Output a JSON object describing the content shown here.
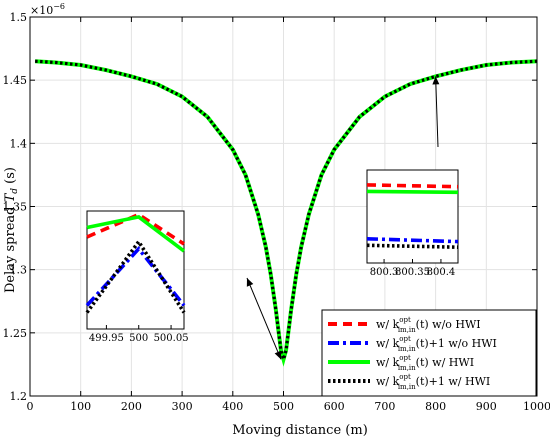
{
  "chart_data": {
    "type": "line",
    "xlabel": "Moving distance (m)",
    "ylabel": "Delay spread T_d (s)",
    "y_multiplier_label": "×10^-6",
    "xlim": [
      0,
      1000
    ],
    "ylim": [
      1.2,
      1.5
    ],
    "xticks": [
      "0",
      "100",
      "200",
      "300",
      "400",
      "500",
      "600",
      "700",
      "800",
      "900",
      "1000"
    ],
    "yticks": [
      "1.2",
      "1.25",
      "1.3",
      "1.35",
      "1.4",
      "1.45",
      "1.5"
    ],
    "grid": true,
    "legend_position": "bottom-right",
    "curve": {
      "x": [
        10,
        50,
        100,
        150,
        200,
        250,
        300,
        350,
        400,
        425,
        450,
        465,
        475,
        485,
        490,
        495,
        500,
        505,
        510,
        515,
        525,
        535,
        550,
        575,
        600,
        650,
        700,
        750,
        800,
        850,
        900,
        950,
        1000
      ],
      "y": [
        1.465,
        1.464,
        1.462,
        1.458,
        1.453,
        1.447,
        1.437,
        1.421,
        1.395,
        1.375,
        1.344,
        1.318,
        1.296,
        1.268,
        1.252,
        1.236,
        1.229,
        1.236,
        1.252,
        1.268,
        1.296,
        1.318,
        1.344,
        1.375,
        1.395,
        1.421,
        1.437,
        1.447,
        1.453,
        1.458,
        1.462,
        1.464,
        1.465
      ]
    },
    "series": [
      {
        "name": "w/ k^opt(t) w/o HWI",
        "color": "#ff0000",
        "dash": "dashed"
      },
      {
        "name": "w/ k^opt(t)+1 w/o HWI",
        "color": "#0000ff",
        "dash": "dashdot"
      },
      {
        "name": "w/ k^opt(t) w/ HWI",
        "color": "#00ff00",
        "dash": "solid"
      },
      {
        "name": "w/ k^opt(t)+1 w/ HWI",
        "color": "#000000",
        "dash": "dotted"
      }
    ],
    "legend": [
      {
        "prefix": "w/ k",
        "suffix": "(t) w/o HWI",
        "sup": "opt",
        "sub": "im,in"
      },
      {
        "prefix": "w/ k",
        "suffix": "(t)+1 w/o HWI",
        "sup": "opt",
        "sub": "im,in"
      },
      {
        "prefix": "w/ k",
        "suffix": "(t) w/ HWI",
        "sup": "opt",
        "sub": "im,in"
      },
      {
        "prefix": "w/ k",
        "suffix": "(t)+1 w/ HWI",
        "sup": "opt",
        "sub": "im,in"
      }
    ],
    "insets": [
      {
        "name": "inset-near-500",
        "xlim": [
          499.92,
          500.07
        ],
        "xticks": [
          "499.95",
          "500",
          "500.05"
        ],
        "xtick_values": [
          499.95,
          500,
          500.05
        ],
        "curves": [
          {
            "x": [
              499.92,
              500,
              500.07
            ],
            "y": [
              0.78,
              0.97,
              0.72
            ]
          },
          {
            "x": [
              499.92,
              500,
              500.07
            ],
            "y": [
              0.2,
              0.68,
              0.2
            ]
          },
          {
            "x": [
              499.92,
              500,
              500.07
            ],
            "y": [
              0.86,
              0.95,
              0.66
            ]
          },
          {
            "x": [
              499.92,
              500,
              500.07
            ],
            "y": [
              0.14,
              0.74,
              0.14
            ]
          }
        ],
        "arrow_target": {
          "x": 495,
          "y": 1.229
        }
      },
      {
        "name": "inset-near-800",
        "xlim": [
          800.27,
          800.43
        ],
        "xticks": [
          "800.3",
          "800.35",
          "800.4"
        ],
        "xtick_values": [
          800.3,
          800.35,
          800.4
        ],
        "curves": [
          {
            "x": [
              800.27,
              800.43
            ],
            "y": [
              0.84,
              0.82
            ]
          },
          {
            "x": [
              800.27,
              800.43
            ],
            "y": [
              0.26,
              0.23
            ]
          },
          {
            "x": [
              800.27,
              800.43
            ],
            "y": [
              0.77,
              0.76
            ]
          },
          {
            "x": [
              800.27,
              800.43
            ],
            "y": [
              0.19,
              0.17
            ]
          }
        ],
        "arrow_target": {
          "x": 800,
          "y": 1.453
        }
      }
    ]
  }
}
